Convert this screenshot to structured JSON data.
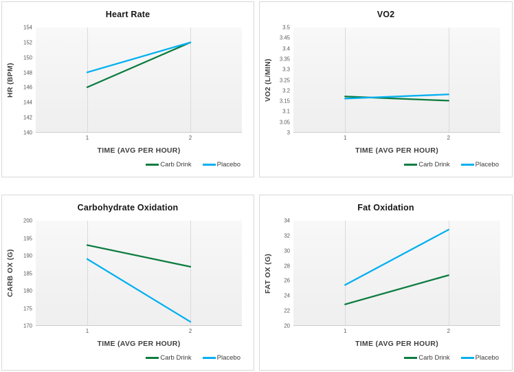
{
  "page": {
    "background": "#ffffff"
  },
  "colors": {
    "carb_drink": "#0c7c40",
    "placebo": "#00b0f0",
    "gridline": "#dadada",
    "tick_text": "#595959",
    "axis_title_text": "#3f3f3f",
    "chart_title_text": "#161616",
    "panel_border": "#d8d8d8"
  },
  "chart_data": [
    {
      "type": "line",
      "title": "Heart Rate",
      "ylabel": "HR (BPM)",
      "xlabel": "TIME (AVG PER HOUR)",
      "categories": [
        "1",
        "2"
      ],
      "ylim": [
        140,
        154
      ],
      "yticks": [
        "154",
        "152",
        "150",
        "148",
        "146",
        "144",
        "142",
        "140"
      ],
      "grid": "vertical-category-lines-only",
      "legend_position": "bottom-right",
      "series": [
        {
          "name": "Carb Drink",
          "color": "#0c7c40",
          "values": [
            146,
            152
          ]
        },
        {
          "name": "Placebo",
          "color": "#00b0f0",
          "values": [
            148,
            152
          ]
        }
      ]
    },
    {
      "type": "line",
      "title": "VO2",
      "ylabel": "VO2 (L/MIN)",
      "xlabel": "TIME (AVG PER HOUR)",
      "categories": [
        "1",
        "2"
      ],
      "ylim": [
        3,
        3.5
      ],
      "yticks": [
        "3.5",
        "3.45",
        "3.4",
        "3.35",
        "3.3",
        "3.25",
        "3.2",
        "3.15",
        "3.1",
        "3.05",
        "3"
      ],
      "grid": "vertical-category-lines-only",
      "legend_position": "bottom-right",
      "series": [
        {
          "name": "Carb Drink",
          "color": "#0c7c40",
          "values": [
            3.17,
            3.15
          ]
        },
        {
          "name": "Placebo",
          "color": "#00b0f0",
          "values": [
            3.16,
            3.18
          ]
        }
      ]
    },
    {
      "type": "line",
      "title": "Carbohydrate Oxidation",
      "ylabel": "CARB OX (G)",
      "xlabel": "TIME (AVG PER HOUR)",
      "categories": [
        "1",
        "2"
      ],
      "ylim": [
        170,
        200
      ],
      "yticks": [
        "200",
        "195",
        "190",
        "185",
        "180",
        "175",
        "170"
      ],
      "grid": "vertical-category-lines-only",
      "legend_position": "bottom-right",
      "series": [
        {
          "name": "Carb Drink",
          "color": "#0c7c40",
          "values": [
            193,
            186.8
          ]
        },
        {
          "name": "Placebo",
          "color": "#00b0f0",
          "values": [
            189,
            171
          ]
        }
      ]
    },
    {
      "type": "line",
      "title": "Fat Oxidation",
      "ylabel": "FAT OX (G)",
      "xlabel": "TIME (AVG PER HOUR)",
      "categories": [
        "1",
        "2"
      ],
      "ylim": [
        20,
        34
      ],
      "yticks": [
        "34",
        "32",
        "30",
        "28",
        "26",
        "24",
        "22",
        "20"
      ],
      "grid": "vertical-category-lines-only",
      "legend_position": "bottom-right",
      "series": [
        {
          "name": "Carb Drink",
          "color": "#0c7c40",
          "values": [
            22.8,
            26.7
          ]
        },
        {
          "name": "Placebo",
          "color": "#00b0f0",
          "values": [
            25.4,
            32.8
          ]
        }
      ]
    }
  ]
}
